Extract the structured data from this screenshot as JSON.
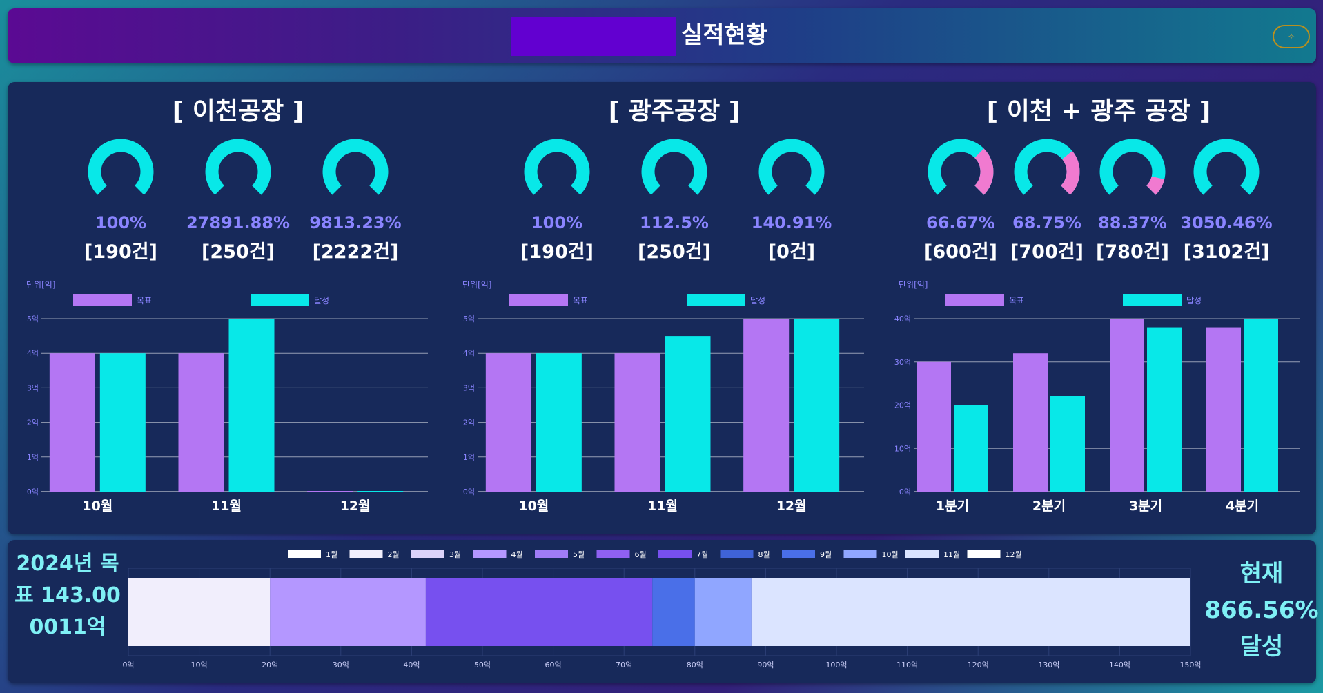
{
  "header": {
    "title": "실적현황",
    "pill_icon": "sparkle-icon"
  },
  "factories": [
    {
      "title": "[ 이천공장 ]",
      "gauges": [
        {
          "pct_label": "100%",
          "count_label": "[190건]",
          "fill": 0
        },
        {
          "pct_label": "27891.88%",
          "count_label": "[250건]",
          "fill": 0
        },
        {
          "pct_label": "9813.23%",
          "count_label": "[2222건]",
          "fill": 0
        }
      ]
    },
    {
      "title": "[ 광주공장 ]",
      "gauges": [
        {
          "pct_label": "100%",
          "count_label": "[190건]",
          "fill": 0
        },
        {
          "pct_label": "112.5%",
          "count_label": "[250건]",
          "fill": 0
        },
        {
          "pct_label": "140.91%",
          "count_label": "[0건]",
          "fill": 0
        }
      ]
    },
    {
      "title": "[ 이천 + 광주 공장 ]",
      "gauges": [
        {
          "pct_label": "66.67%",
          "count_label": "[600건]",
          "fill": 0.6667
        },
        {
          "pct_label": "68.75%",
          "count_label": "[700건]",
          "fill": 0.6875
        },
        {
          "pct_label": "88.37%",
          "count_label": "[780건]",
          "fill": 0.8837
        },
        {
          "pct_label": "3050.46%",
          "count_label": "[3102건]",
          "fill": 0
        }
      ]
    }
  ],
  "colors": {
    "target": "#b476f3",
    "achieved": "#08e8e8",
    "gauge_base": "#08e8e8",
    "gauge_fill": "#f07ad0",
    "grid": "#ffffff",
    "axis_text": "#8a84ff"
  },
  "chart_data": [
    {
      "type": "bar",
      "unit_label": "단위[억]",
      "series": [
        {
          "name": "목표",
          "values": [
            4,
            4,
            0
          ]
        },
        {
          "name": "달성",
          "values": [
            4,
            5,
            0
          ]
        }
      ],
      "categories": [
        "10월",
        "11월",
        "12월"
      ],
      "yticks": [
        "0억",
        "1억",
        "2억",
        "3억",
        "4억",
        "5억"
      ],
      "ylim": [
        0,
        5
      ]
    },
    {
      "type": "bar",
      "unit_label": "단위[억]",
      "series": [
        {
          "name": "목표",
          "values": [
            4,
            4,
            5
          ]
        },
        {
          "name": "달성",
          "values": [
            4,
            4.5,
            5
          ]
        }
      ],
      "categories": [
        "10월",
        "11월",
        "12월"
      ],
      "yticks": [
        "0억",
        "1억",
        "2억",
        "3억",
        "4억",
        "5억"
      ],
      "ylim": [
        0,
        5
      ]
    },
    {
      "type": "bar",
      "unit_label": "단위[억]",
      "series": [
        {
          "name": "목표",
          "values": [
            30,
            32,
            40,
            38
          ]
        },
        {
          "name": "달성",
          "values": [
            20,
            22,
            38,
            40
          ]
        }
      ],
      "categories": [
        "1분기",
        "2분기",
        "3분기",
        "4분기"
      ],
      "yticks": [
        "0억",
        "10억",
        "20억",
        "30억",
        "40억"
      ],
      "ylim": [
        0,
        40
      ]
    },
    {
      "type": "bar",
      "orientation": "horizontal-stacked",
      "series": [
        {
          "name": "1월",
          "color": "#ffffff",
          "value": 0
        },
        {
          "name": "2월",
          "color": "#f1eefc",
          "value": 20
        },
        {
          "name": "3월",
          "color": "#dcd3fb",
          "value": 0
        },
        {
          "name": "4월",
          "color": "#b497ff",
          "value": 22
        },
        {
          "name": "5월",
          "color": "#9f7cf7",
          "value": 0
        },
        {
          "name": "6월",
          "color": "#8f61f2",
          "value": 0
        },
        {
          "name": "7월",
          "color": "#7750ef",
          "value": 32
        },
        {
          "name": "8월",
          "color": "#3f63d7",
          "value": 0
        },
        {
          "name": "9월",
          "color": "#4a6fe8",
          "value": 6
        },
        {
          "name": "10월",
          "color": "#90a6ff",
          "value": 8
        },
        {
          "name": "11월",
          "color": "#dbe4ff",
          "value": 62
        },
        {
          "name": "12월",
          "color": "#ffffff",
          "value": 0
        }
      ],
      "xticks": [
        "0억",
        "10억",
        "20억",
        "30억",
        "40억",
        "50억",
        "60억",
        "70억",
        "80억",
        "90억",
        "100억",
        "110억",
        "120억",
        "130억",
        "140억",
        "150억"
      ],
      "xlim": [
        0,
        150
      ],
      "legend": "top"
    }
  ],
  "summary": {
    "goal_text": "2024년 목표 143.000011억",
    "now_line1": "현재",
    "now_line2": "866.56%",
    "now_line3": "달성"
  }
}
